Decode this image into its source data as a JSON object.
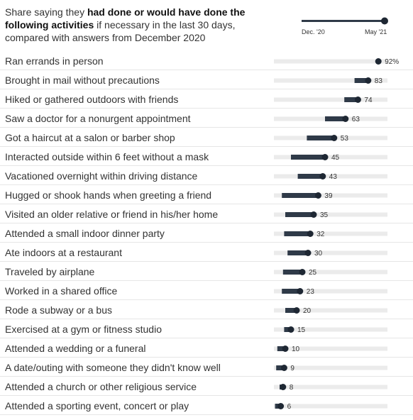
{
  "header": {
    "intro": "Share saying they ",
    "bold": "had done or would have done the following activities",
    "rest": " if necessary in the last 30 days, compared with answers from December 2020"
  },
  "legend": {
    "start_label": "Dec. '20",
    "end_label": "May '21"
  },
  "colors": {
    "bar": "#2f3a48",
    "track": "#ebebeb",
    "dot": "#1e2733"
  },
  "chart_data": {
    "type": "dumbbell",
    "title": "Share saying they had done or would have done the following activities if necessary in the last 30 days, compared with answers from December 2020",
    "x_range": [
      0,
      100
    ],
    "series": [
      {
        "name": "Dec. '20"
      },
      {
        "name": "May '21"
      }
    ],
    "rows": [
      {
        "label": "Ran errands in person",
        "dec20": 92,
        "may21": 92,
        "value_label": "92%"
      },
      {
        "label": "Brought in mail without precautions",
        "dec20": 71,
        "may21": 83,
        "value_label": "83"
      },
      {
        "label": "Hiked or gathered outdoors with friends",
        "dec20": 62,
        "may21": 74,
        "value_label": "74"
      },
      {
        "label": "Saw a doctor for a nonurgent appointment",
        "dec20": 45,
        "may21": 63,
        "value_label": "63"
      },
      {
        "label": "Got a haircut at a salon or barber shop",
        "dec20": 29,
        "may21": 53,
        "value_label": "53"
      },
      {
        "label": "Interacted outside within 6 feet without a mask",
        "dec20": 15,
        "may21": 45,
        "value_label": "45"
      },
      {
        "label": "Vacationed overnight within driving distance",
        "dec20": 21,
        "may21": 43,
        "value_label": "43"
      },
      {
        "label": "Hugged or shook hands when greeting a friend",
        "dec20": 7,
        "may21": 39,
        "value_label": "39"
      },
      {
        "label": "Visited an older relative or friend in his/her home",
        "dec20": 10,
        "may21": 35,
        "value_label": "35"
      },
      {
        "label": "Attended a small indoor dinner party",
        "dec20": 9,
        "may21": 32,
        "value_label": "32"
      },
      {
        "label": "Ate indoors at a restaurant",
        "dec20": 12,
        "may21": 30,
        "value_label": "30"
      },
      {
        "label": "Traveled by airplane",
        "dec20": 8,
        "may21": 25,
        "value_label": "25"
      },
      {
        "label": "Worked in a shared office",
        "dec20": 7,
        "may21": 23,
        "value_label": "23"
      },
      {
        "label": "Rode a subway or a bus",
        "dec20": 10,
        "may21": 20,
        "value_label": "20"
      },
      {
        "label": "Exercised at a gym or fitness studio",
        "dec20": 9,
        "may21": 15,
        "value_label": "15"
      },
      {
        "label": "Attended a wedding or a funeral",
        "dec20": 3,
        "may21": 10,
        "value_label": "10"
      },
      {
        "label": "A date/outing with someone they didn't know well",
        "dec20": 2,
        "may21": 9,
        "value_label": "9"
      },
      {
        "label": "Attended a church or other religious service",
        "dec20": 5,
        "may21": 8,
        "value_label": "8"
      },
      {
        "label": "Attended a sporting event, concert or play",
        "dec20": 1,
        "may21": 6,
        "value_label": "6"
      }
    ]
  }
}
